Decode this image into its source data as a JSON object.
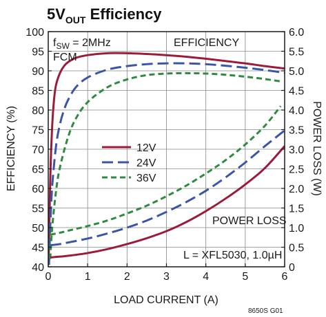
{
  "title": {
    "main": "5V",
    "sub": "OUT",
    "rest": " Efficiency"
  },
  "figure_id": "8650S G01",
  "annotations": {
    "fsw_main": "f",
    "fsw_sub": "SW",
    "fsw_rest": " = 2MHz",
    "mode": "FCM",
    "efficiency_label": "EFFICIENCY",
    "power_loss_label": "POWER LOSS",
    "inductor": "L = XFL5030, 1.0µH"
  },
  "colors": {
    "12V": "#9b1c3a",
    "24V": "#3a55a8",
    "36V": "#2e8b3e",
    "axis": "#1a1a1a",
    "grid": "#888888"
  },
  "chart_data": {
    "type": "line",
    "title": "5VOUT Efficiency",
    "xlabel": "LOAD CURRENT (A)",
    "ylabel": "EFFICIENCY (%)",
    "y2label": "POWER LOSS (W)",
    "xlim": [
      0,
      6
    ],
    "ylim": [
      40,
      100
    ],
    "y2lim": [
      0,
      6
    ],
    "xticks": [
      "0",
      "1",
      "2",
      "3",
      "4",
      "5",
      "6"
    ],
    "yticks": [
      "40",
      "45",
      "50",
      "55",
      "60",
      "65",
      "70",
      "75",
      "80",
      "85",
      "90",
      "95",
      "100"
    ],
    "y2ticks": [
      "0",
      "0.5",
      "1.0",
      "1.5",
      "2.0",
      "2.5",
      "3.0",
      "3.5",
      "4.0",
      "4.5",
      "5.0",
      "5.5",
      "6.0"
    ],
    "grid": true,
    "legend_position": "left-center",
    "legend": [
      {
        "name": "12V",
        "style": "solid"
      },
      {
        "name": "24V",
        "style": "long-dash"
      },
      {
        "name": "36V",
        "style": "short-dash"
      }
    ],
    "series": [
      {
        "name": "12V",
        "kind": "efficiency",
        "axis": "left",
        "x": [
          0.01,
          0.05,
          0.1,
          0.15,
          0.2,
          0.3,
          0.4,
          0.5,
          0.7,
          1.0,
          1.5,
          2.0,
          2.5,
          3.0,
          3.5,
          4.0,
          4.5,
          5.0,
          5.5,
          6.0
        ],
        "y": [
          40.5,
          62,
          76,
          83,
          86.5,
          89.5,
          91.2,
          92.2,
          93.3,
          94.0,
          94.5,
          94.5,
          94.3,
          94.0,
          93.6,
          93.1,
          92.5,
          91.9,
          91.2,
          90.6
        ]
      },
      {
        "name": "24V",
        "kind": "efficiency",
        "axis": "left",
        "x": [
          0.02,
          0.05,
          0.1,
          0.2,
          0.3,
          0.4,
          0.5,
          0.7,
          1.0,
          1.5,
          2.0,
          2.5,
          3.0,
          3.5,
          4.0,
          4.5,
          5.0,
          5.5,
          6.0
        ],
        "y": [
          40.5,
          50,
          60.5,
          71,
          76.5,
          80,
          82.5,
          85.8,
          88.3,
          90.3,
          91.2,
          91.7,
          91.9,
          91.9,
          91.7,
          91.3,
          90.8,
          90.2,
          89.5
        ]
      },
      {
        "name": "36V",
        "kind": "efficiency",
        "axis": "left",
        "x": [
          0.05,
          0.1,
          0.2,
          0.3,
          0.5,
          0.7,
          1.0,
          1.5,
          2.0,
          2.5,
          3.0,
          3.5,
          4.0,
          4.5,
          5.0,
          5.5,
          5.9
        ],
        "y": [
          42,
          50,
          59.5,
          65.5,
          73,
          77.8,
          82,
          85.8,
          87.8,
          88.9,
          89.3,
          89.4,
          89.3,
          89.0,
          88.5,
          87.9,
          87.3
        ]
      },
      {
        "name": "12V",
        "kind": "power_loss",
        "axis": "right",
        "x": [
          0.05,
          0.3,
          0.5,
          1.0,
          1.5,
          2.0,
          2.5,
          3.0,
          3.5,
          4.0,
          4.5,
          5.0,
          5.5,
          6.0
        ],
        "y": [
          0.24,
          0.26,
          0.28,
          0.35,
          0.45,
          0.58,
          0.73,
          0.91,
          1.14,
          1.42,
          1.74,
          2.1,
          2.52,
          3.08
        ]
      },
      {
        "name": "24V",
        "kind": "power_loss",
        "axis": "right",
        "x": [
          0.05,
          0.3,
          0.5,
          1.0,
          1.5,
          2.0,
          2.5,
          3.0,
          3.5,
          4.0,
          4.5,
          5.0,
          5.5,
          6.0
        ],
        "y": [
          0.55,
          0.58,
          0.62,
          0.72,
          0.85,
          1.0,
          1.18,
          1.4,
          1.65,
          1.94,
          2.28,
          2.66,
          3.08,
          3.48
        ]
      },
      {
        "name": "36V",
        "kind": "power_loss",
        "axis": "right",
        "x": [
          0.05,
          0.3,
          0.5,
          1.0,
          1.5,
          2.0,
          2.5,
          3.0,
          3.5,
          4.0,
          4.5,
          5.0,
          5.5,
          5.9
        ],
        "y": [
          0.82,
          0.87,
          0.92,
          1.04,
          1.18,
          1.36,
          1.56,
          1.8,
          2.07,
          2.38,
          2.72,
          3.12,
          3.6,
          4.1
        ]
      }
    ]
  }
}
